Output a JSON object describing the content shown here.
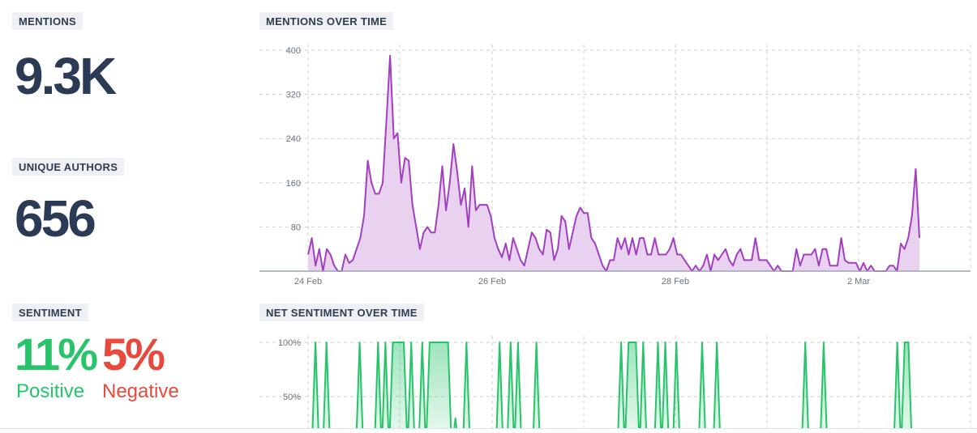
{
  "mentions": {
    "label": "MENTIONS",
    "value": "9.3K"
  },
  "unique_authors": {
    "label": "UNIQUE AUTHORS",
    "value": "656"
  },
  "sentiment": {
    "label": "SENTIMENT",
    "positive_value": "11%",
    "positive_label": "Positive",
    "negative_value": "5%",
    "negative_label": "Negative"
  },
  "colors": {
    "mentions_line": "#a23fc0",
    "mentions_fill": "#e9d2ef",
    "positive": "#27c46a",
    "negative": "#e8493d",
    "text_dark": "#2c3b55"
  },
  "chart_data": [
    {
      "type": "area",
      "title": "MENTIONS OVER TIME",
      "xlabel": "",
      "ylabel": "",
      "x_ticks": [
        "24 Feb",
        "26 Feb",
        "28 Feb",
        "2 Mar"
      ],
      "y_ticks": [
        "400",
        "320",
        "240",
        "160",
        "80"
      ],
      "ylim": [
        0,
        400
      ],
      "grid": true,
      "series": [
        {
          "values": [
            30,
            60,
            10,
            40,
            0,
            40,
            30,
            10,
            0,
            0,
            30,
            15,
            20,
            40,
            60,
            100,
            200,
            160,
            140,
            140,
            160,
            270,
            390,
            240,
            250,
            160,
            205,
            200,
            120,
            80,
            40,
            70,
            80,
            70,
            70,
            120,
            190,
            110,
            160,
            230,
            180,
            120,
            150,
            80,
            190,
            110,
            120,
            120,
            120,
            100,
            60,
            40,
            25,
            50,
            20,
            60,
            40,
            20,
            10,
            40,
            70,
            60,
            40,
            30,
            75,
            70,
            20,
            40,
            100,
            90,
            40,
            70,
            100,
            115,
            105,
            105,
            60,
            50,
            30,
            10,
            0,
            20,
            20,
            60,
            40,
            60,
            30,
            60,
            30,
            60,
            60,
            30,
            30,
            60,
            30,
            30,
            30,
            40,
            60,
            30,
            30,
            20,
            10,
            0,
            10,
            0,
            10,
            30,
            0,
            30,
            20,
            30,
            40,
            20,
            10,
            30,
            40,
            20,
            20,
            20,
            60,
            20,
            20,
            20,
            10,
            0,
            10,
            0,
            0,
            0,
            0,
            40,
            10,
            30,
            30,
            30,
            40,
            10,
            40,
            40,
            10,
            10,
            10,
            60,
            20,
            15,
            15,
            15,
            0,
            15,
            0,
            10,
            0,
            0,
            0,
            0,
            10,
            10,
            0,
            50,
            40,
            60,
            100,
            185,
            60
          ]
        }
      ]
    },
    {
      "type": "area",
      "title": "NET SENTIMENT OVER TIME",
      "xlabel": "",
      "ylabel": "",
      "y_ticks": [
        "100%",
        "50%"
      ],
      "ylim": [
        0,
        100
      ],
      "grid": true,
      "series": [
        {
          "values": [
            0,
            0,
            100,
            0,
            0,
            100,
            0,
            0,
            0,
            0,
            0,
            0,
            0,
            0,
            100,
            0,
            0,
            0,
            0,
            100,
            0,
            100,
            0,
            100,
            100,
            100,
            100,
            0,
            100,
            0,
            0,
            100,
            0,
            100,
            100,
            100,
            100,
            100,
            100,
            0,
            30,
            0,
            0,
            100,
            0,
            0,
            0,
            10,
            0,
            20,
            0,
            0,
            100,
            0,
            0,
            100,
            0,
            100,
            0,
            0,
            0,
            0,
            100,
            0,
            0,
            0,
            0,
            0,
            0,
            0,
            0,
            0,
            0,
            0,
            0,
            0,
            0,
            0,
            0,
            0,
            0,
            0,
            0,
            0,
            0,
            100,
            0,
            100,
            100,
            100,
            0,
            100,
            0,
            0,
            0,
            100,
            0,
            100,
            0,
            0,
            100,
            0,
            0,
            0,
            0,
            0,
            0,
            100,
            0,
            0,
            0,
            100,
            0,
            0,
            0,
            0,
            0,
            0,
            0,
            0,
            0,
            0,
            0,
            0,
            0,
            0,
            0,
            0,
            0,
            0,
            0,
            0,
            0,
            0,
            0,
            100,
            0,
            0,
            0,
            0,
            100,
            0,
            0,
            0,
            0,
            0,
            0,
            0,
            0,
            0,
            0,
            0,
            0,
            0,
            0,
            0,
            0,
            0,
            0,
            0,
            100,
            0,
            100,
            100,
            0,
            0,
            0
          ]
        }
      ]
    }
  ]
}
